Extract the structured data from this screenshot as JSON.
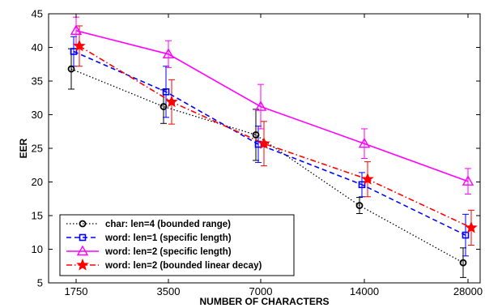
{
  "chart_data": {
    "type": "line",
    "xlabel": "NUMBER OF CHARACTERS",
    "ylabel": "EER",
    "categories": [
      "1750",
      "3500",
      "7000",
      "14000",
      "28000"
    ],
    "ylim": [
      5,
      45
    ],
    "yticks": [
      5,
      10,
      15,
      20,
      25,
      30,
      35,
      40,
      45
    ],
    "grid": false,
    "legend_position": "bottom-left",
    "series": [
      {
        "name": "char: len=4 (bounded range)",
        "color": "#000000",
        "line_style": "dotted",
        "marker": "circle",
        "values": [
          36.8,
          31.2,
          27.0,
          16.5,
          8.0
        ],
        "err": [
          3.0,
          2.5,
          3.8,
          1.2,
          2.2
        ]
      },
      {
        "name": "word: len=1 (specific length)",
        "color": "#0000ff",
        "line_style": "dashed",
        "marker": "square",
        "values": [
          39.4,
          33.4,
          25.6,
          19.6,
          12.1
        ],
        "err": [
          2.2,
          3.8,
          2.7,
          1.8,
          3.1
        ]
      },
      {
        "name": "word: len=2 (specific length)",
        "color": "#ff00ff",
        "line_style": "solid",
        "marker": "triangle",
        "values": [
          42.5,
          39.0,
          31.2,
          25.7,
          20.1
        ],
        "err": [
          2.0,
          2.0,
          3.3,
          2.2,
          1.9
        ]
      },
      {
        "name": "word: len=2 (bounded linear decay)",
        "color": "#ff0000",
        "line_style": "dashdot",
        "marker": "star",
        "values": [
          40.2,
          31.9,
          25.7,
          20.4,
          13.2
        ],
        "err": [
          3.0,
          3.3,
          3.3,
          2.6,
          2.6
        ]
      }
    ]
  }
}
